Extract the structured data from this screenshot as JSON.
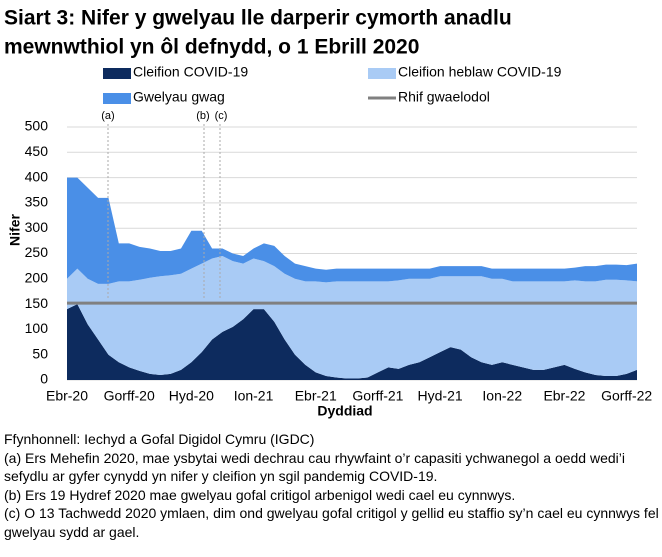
{
  "chart_data": {
    "type": "stacked_area",
    "title": [
      "Siart 3: Nifer y gwelyau lle darperir cymorth anadlu",
      "mewnwthiol yn ôl defnydd, o 1 Ebrill 2020"
    ],
    "y_label": "Nifer",
    "x_label": "Dyddiad",
    "annotations": [
      "(a)",
      "(b)",
      "(c)"
    ],
    "categories": [
      "Ebr-20",
      null,
      null,
      null,
      null,
      null,
      "Gorff-20",
      null,
      null,
      null,
      null,
      null,
      "Hyd-20",
      null,
      null,
      null,
      null,
      null,
      "Ion-21",
      null,
      null,
      null,
      null,
      null,
      "Ebr-21",
      null,
      null,
      null,
      null,
      null,
      "Gorff-21",
      null,
      null,
      null,
      null,
      null,
      "Hyd-21",
      null,
      null,
      null,
      null,
      null,
      "Ion-22",
      null,
      null,
      null,
      null,
      null,
      "Ebr-22",
      null,
      null,
      null,
      null,
      null,
      "Gorff-22",
      null
    ],
    "series": [
      {
        "name": "Cleifion COVID-19",
        "color": "#0d2b5e",
        "values": [
          140,
          150,
          110,
          80,
          50,
          35,
          25,
          18,
          12,
          10,
          12,
          20,
          35,
          55,
          80,
          95,
          105,
          120,
          140,
          140,
          115,
          80,
          50,
          30,
          15,
          8,
          5,
          3,
          3,
          5,
          15,
          25,
          22,
          30,
          35,
          45,
          55,
          65,
          60,
          45,
          35,
          30,
          35,
          30,
          25,
          20,
          20,
          25,
          30,
          22,
          15,
          10,
          8,
          8,
          12,
          20
        ]
      },
      {
        "name": "Cleifion heblaw COVID-19",
        "color": "#a9cbf5",
        "values": [
          60,
          70,
          90,
          110,
          140,
          160,
          170,
          180,
          190,
          195,
          195,
          190,
          185,
          175,
          160,
          150,
          130,
          110,
          100,
          95,
          110,
          130,
          150,
          165,
          180,
          185,
          190,
          192,
          192,
          190,
          180,
          170,
          175,
          170,
          165,
          155,
          150,
          140,
          145,
          160,
          170,
          170,
          165,
          165,
          170,
          175,
          175,
          170,
          165,
          175,
          180,
          185,
          190,
          190,
          185,
          175
        ]
      },
      {
        "name": "Gwelyau gwag",
        "color": "#4a8fe7",
        "values": [
          200,
          180,
          180,
          170,
          170,
          75,
          75,
          65,
          58,
          50,
          48,
          50,
          75,
          65,
          20,
          15,
          15,
          15,
          20,
          35,
          40,
          35,
          30,
          30,
          25,
          25,
          25,
          25,
          25,
          25,
          25,
          25,
          23,
          20,
          20,
          20,
          20,
          20,
          20,
          20,
          20,
          20,
          20,
          25,
          25,
          25,
          25,
          25,
          25,
          25,
          30,
          30,
          30,
          30,
          30,
          35
        ]
      }
    ],
    "reference": {
      "name": "Rhif gwaelodol",
      "value": 152,
      "color": "#808080"
    },
    "ylim": [
      0,
      500
    ],
    "yticks": [
      0,
      50,
      100,
      150,
      200,
      250,
      300,
      350,
      400,
      450,
      500
    ],
    "grid": true
  },
  "notes": [
    "Ffynhonnell: Iechyd a Gofal Digidol Cymru (IGDC)",
    "(a) Ers Mehefin 2020, mae ysbytai wedi dechrau cau rhywfaint o’r capasiti ychwanegol a oedd wedi’i sefydlu ar gyfer cynydd yn nifer y cleifion yn sgil pandemig COVID-19.",
    "(b) Ers 19 Hydref 2020 mae gwelyau gofal critigol arbenigol wedi cael eu cynnwys.",
    "(c) O 13 Tachwedd 2020 ymlaen, dim ond gwelyau gofal critigol y gellid eu staffio sy’n cael eu cynnwys fel gwelyau sydd ar gael."
  ]
}
